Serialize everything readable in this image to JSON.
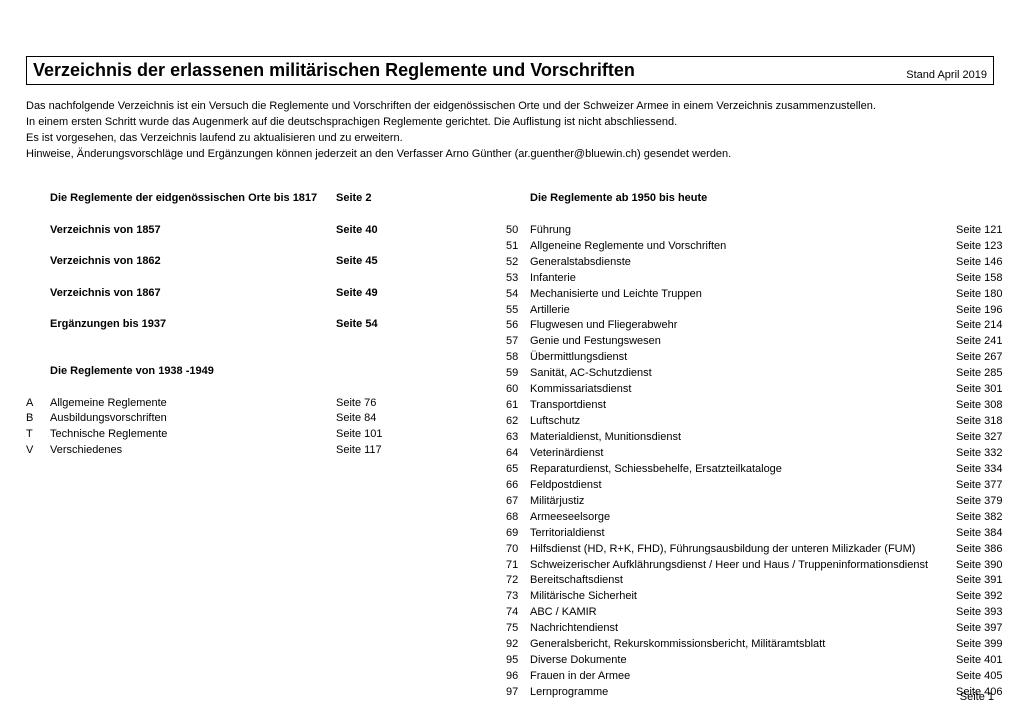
{
  "header": {
    "title": "Verzeichnis der erlassenen militärischen Reglemente und Vorschriften",
    "date": "Stand April 2019"
  },
  "intro": [
    "Das nachfolgende Verzeichnis ist ein Versuch die Reglemente und Vorschriften der eidgenössischen Orte und der Schweizer Armee in einem Verzeichnis zusammenzustellen.",
    "In einem ersten Schritt wurde das Augenmerk auf die deutschsprachigen Reglemente gerichtet. Die Auflistung ist nicht abschliessend.",
    "Es ist vorgesehen, das Verzeichnis laufend zu aktualisieren und zu erweitern.",
    "Hinweise, Änderungsvorschläge und Ergänzungen können jederzeit an den Verfasser Arno Günther (ar.guenther@bluewin.ch) gesendet werden."
  ],
  "left": [
    {
      "type": "row",
      "bold": true,
      "c1": "",
      "c2": "Die Reglemente der eidgenössischen Orte bis 1817",
      "c3": "Seite 2"
    },
    {
      "type": "gap"
    },
    {
      "type": "row",
      "bold": true,
      "c1": "",
      "c2": "Verzeichnis von 1857",
      "c3": "Seite 40"
    },
    {
      "type": "gap"
    },
    {
      "type": "row",
      "bold": true,
      "c1": "",
      "c2": "Verzeichnis von 1862",
      "c3": "Seite 45"
    },
    {
      "type": "gap"
    },
    {
      "type": "row",
      "bold": true,
      "c1": "",
      "c2": "Verzeichnis von 1867",
      "c3": "Seite 49"
    },
    {
      "type": "gap"
    },
    {
      "type": "row",
      "bold": true,
      "c1": "",
      "c2": "Ergänzungen bis 1937",
      "c3": "Seite 54"
    },
    {
      "type": "gap"
    },
    {
      "type": "gap"
    },
    {
      "type": "row",
      "bold": true,
      "c1": "",
      "c2": "Die Reglemente von 1938 -1949",
      "c3": ""
    },
    {
      "type": "gap"
    },
    {
      "type": "row",
      "bold": false,
      "c1": "A",
      "c2": "Allgemeine Reglemente",
      "c3": "Seite 76"
    },
    {
      "type": "row",
      "bold": false,
      "c1": "B",
      "c2": "Ausbildungsvorschriften",
      "c3": "Seite 84"
    },
    {
      "type": "row",
      "bold": false,
      "c1": "T",
      "c2": "Technische Reglemente",
      "c3": "Seite 101"
    },
    {
      "type": "row",
      "bold": false,
      "c1": "V",
      "c2": "Verschiedenes",
      "c3": "Seite 117"
    }
  ],
  "right": [
    {
      "type": "row",
      "bold": true,
      "c1": "",
      "c2": "Die Reglemente ab 1950 bis heute",
      "c3": ""
    },
    {
      "type": "gap"
    },
    {
      "type": "row",
      "bold": false,
      "c1": "50",
      "c2": "Führung",
      "c3": "Seite 121"
    },
    {
      "type": "row",
      "bold": false,
      "c1": "51",
      "c2": "Allgeneine Reglemente und Vorschriften",
      "c3": "Seite 123"
    },
    {
      "type": "row",
      "bold": false,
      "c1": "52",
      "c2": "Generalstabsdienste",
      "c3": "Seite 146"
    },
    {
      "type": "row",
      "bold": false,
      "c1": "53",
      "c2": "Infanterie",
      "c3": "Seite 158"
    },
    {
      "type": "row",
      "bold": false,
      "c1": "54",
      "c2": "Mechanisierte und Leichte Truppen",
      "c3": "Seite 180"
    },
    {
      "type": "row",
      "bold": false,
      "c1": "55",
      "c2": "Artillerie",
      "c3": "Seite 196"
    },
    {
      "type": "row",
      "bold": false,
      "c1": "56",
      "c2": "Flugwesen und Fliegerabwehr",
      "c3": "Seite 214"
    },
    {
      "type": "row",
      "bold": false,
      "c1": "57",
      "c2": "Genie und Festungswesen",
      "c3": "Seite 241"
    },
    {
      "type": "row",
      "bold": false,
      "c1": "58",
      "c2": "Übermittlungsdienst",
      "c3": "Seite 267"
    },
    {
      "type": "row",
      "bold": false,
      "c1": "59",
      "c2": "Sanität, AC-Schutzdienst",
      "c3": "Seite 285"
    },
    {
      "type": "row",
      "bold": false,
      "c1": "60",
      "c2": "Kommissariatsdienst",
      "c3": "Seite 301"
    },
    {
      "type": "row",
      "bold": false,
      "c1": "61",
      "c2": "Transportdienst",
      "c3": "Seite 308"
    },
    {
      "type": "row",
      "bold": false,
      "c1": "62",
      "c2": "Luftschutz",
      "c3": "Seite 318"
    },
    {
      "type": "row",
      "bold": false,
      "c1": "63",
      "c2": "Materialdienst, Munitionsdienst",
      "c3": "Seite 327"
    },
    {
      "type": "row",
      "bold": false,
      "c1": "64",
      "c2": "Veterinärdienst",
      "c3": "Seite 332"
    },
    {
      "type": "row",
      "bold": false,
      "c1": "65",
      "c2": "Reparaturdienst, Schiessbehelfe, Ersatzteilkataloge",
      "c3": "Seite 334"
    },
    {
      "type": "row",
      "bold": false,
      "c1": "66",
      "c2": "Feldpostdienst",
      "c3": "Seite 377"
    },
    {
      "type": "row",
      "bold": false,
      "c1": "67",
      "c2": "Militärjustiz",
      "c3": "Seite 379"
    },
    {
      "type": "row",
      "bold": false,
      "c1": "68",
      "c2": "Armeeseelsorge",
      "c3": "Seite 382"
    },
    {
      "type": "row",
      "bold": false,
      "c1": "69",
      "c2": "Territorialdienst",
      "c3": "Seite 384"
    },
    {
      "type": "row",
      "bold": false,
      "c1": "70",
      "c2": "Hilfsdienst (HD, R+K, FHD), Führungsausbildung der unteren Milizkader (FUM)",
      "c3": "Seite 386"
    },
    {
      "type": "row",
      "bold": false,
      "c1": "71",
      "c2": "Schweizerischer Aufklährungsdienst / Heer und Haus / Truppeninformationsdienst",
      "c3": "Seite 390"
    },
    {
      "type": "row",
      "bold": false,
      "c1": "72",
      "c2": "Bereitschaftsdienst",
      "c3": "Seite 391"
    },
    {
      "type": "row",
      "bold": false,
      "c1": "73",
      "c2": "Militärische Sicherheit",
      "c3": "Seite 392"
    },
    {
      "type": "row",
      "bold": false,
      "c1": "74",
      "c2": "ABC / KAMIR",
      "c3": "Seite 393"
    },
    {
      "type": "row",
      "bold": false,
      "c1": "75",
      "c2": "Nachrichtendienst",
      "c3": "Seite 397"
    },
    {
      "type": "row",
      "bold": false,
      "c1": "92",
      "c2": "Generalsbericht, Rekurskommissionsbericht, Militäramtsblatt",
      "c3": "Seite 399"
    },
    {
      "type": "row",
      "bold": false,
      "c1": "95",
      "c2": "Diverse Dokumente",
      "c3": "Seite 401"
    },
    {
      "type": "row",
      "bold": false,
      "c1": "96",
      "c2": "Frauen in der Armee",
      "c3": "Seite 405"
    },
    {
      "type": "row",
      "bold": false,
      "c1": "97",
      "c2": "Lernprogramme",
      "c3": "Seite 406"
    }
  ],
  "footer": {
    "page": "Seite 1"
  }
}
